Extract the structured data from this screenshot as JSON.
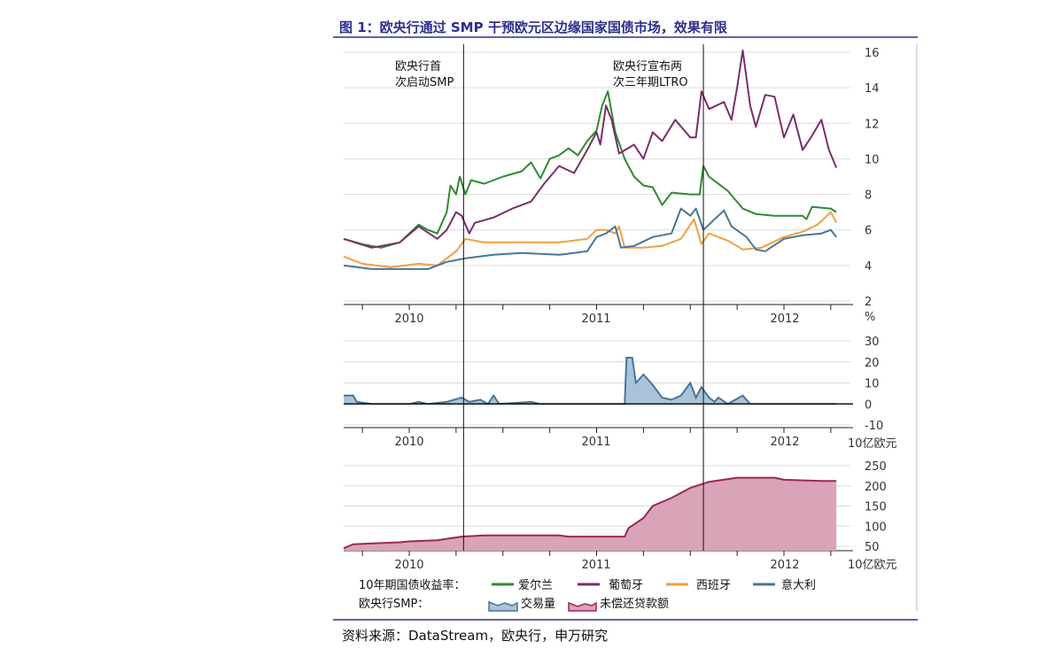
{
  "title": "图 1：欧央行通过 SMP 干预欧元区边缘国家国债市场，效果有限",
  "source": "资料来源：DataStream，欧央行，申万研究",
  "annotations": {
    "smp": [
      "欧央行首",
      "次启动SMP"
    ],
    "ltro": [
      "欧央行宣布两",
      "次三年期LTRO"
    ]
  },
  "legend": {
    "yield_label": "10年期国债收益率：",
    "smp_label": "欧央行SMP：",
    "items": [
      "爱尔兰",
      "葡萄牙",
      "西班牙",
      "意大利",
      "交易量",
      "未偿还贷款额"
    ]
  },
  "colors": {
    "ireland": "#2e8b2e",
    "portugal": "#7b2d6e",
    "spain": "#f0a040",
    "italy": "#4a7595",
    "volume_fill": "#a9c4da",
    "outstanding_fill": "#d9a3b8",
    "outstanding_line": "#9a2858",
    "title": "#2b2f8f"
  },
  "chart_data": [
    {
      "type": "line",
      "ylabel": "%",
      "ylim": [
        2,
        16
      ],
      "yticks": [
        "16",
        "14",
        "12",
        "10",
        "8",
        "6",
        "4",
        "2"
      ],
      "xticks": [
        "2010",
        "2011",
        "2012"
      ],
      "grid": true,
      "event_lines": [
        2010.29,
        2011.57
      ],
      "series": [
        {
          "name": "爱尔兰",
          "x": [
            2009.65,
            2009.75,
            2009.85,
            2009.95,
            2010.0,
            2010.05,
            2010.1,
            2010.15,
            2010.2,
            2010.22,
            2010.25,
            2010.27,
            2010.3,
            2010.33,
            2010.4,
            2010.5,
            2010.6,
            2010.65,
            2010.7,
            2010.75,
            2010.8,
            2010.85,
            2010.9,
            2010.95,
            2011.0,
            2011.03,
            2011.06,
            2011.1,
            2011.15,
            2011.2,
            2011.25,
            2011.3,
            2011.35,
            2011.4,
            2011.5,
            2011.55,
            2011.57,
            2011.6,
            2011.7,
            2011.78,
            2011.85,
            2011.95,
            2012.1,
            2012.12,
            2012.15,
            2012.25,
            2012.28
          ],
          "y": [
            5.5,
            5.2,
            5.0,
            5.3,
            5.8,
            6.3,
            6.0,
            5.8,
            7.0,
            8.5,
            8.0,
            9.0,
            8.0,
            8.8,
            8.6,
            9.0,
            9.3,
            9.8,
            8.9,
            10.0,
            10.2,
            10.6,
            10.2,
            11.0,
            11.6,
            13.0,
            13.8,
            11.5,
            10.0,
            9.0,
            8.5,
            8.4,
            7.4,
            8.1,
            8.0,
            8.0,
            9.6,
            9.0,
            8.2,
            7.2,
            6.9,
            6.8,
            6.8,
            6.6,
            7.3,
            7.2,
            7.0
          ]
        },
        {
          "name": "葡萄牙",
          "x": [
            2009.65,
            2009.8,
            2009.95,
            2010.05,
            2010.15,
            2010.2,
            2010.25,
            2010.28,
            2010.32,
            2010.35,
            2010.45,
            2010.55,
            2010.65,
            2010.72,
            2010.8,
            2010.88,
            2010.95,
            2011.0,
            2011.02,
            2011.05,
            2011.08,
            2011.12,
            2011.2,
            2011.25,
            2011.3,
            2011.35,
            2011.42,
            2011.5,
            2011.53,
            2011.56,
            2011.6,
            2011.68,
            2011.72,
            2011.75,
            2011.78,
            2011.82,
            2011.85,
            2011.9,
            2011.95,
            2012.0,
            2012.05,
            2012.1,
            2012.15,
            2012.2,
            2012.24,
            2012.28
          ],
          "y": [
            5.5,
            5.0,
            5.3,
            6.2,
            5.5,
            6.0,
            7.0,
            6.8,
            5.8,
            6.4,
            6.7,
            7.2,
            7.6,
            8.6,
            9.6,
            9.2,
            10.5,
            11.5,
            10.8,
            13.0,
            12.2,
            10.3,
            10.8,
            10.0,
            11.5,
            11.0,
            12.2,
            11.2,
            11.2,
            13.8,
            12.8,
            13.2,
            12.2,
            14.0,
            16.1,
            13.0,
            11.8,
            13.6,
            13.5,
            11.2,
            12.5,
            10.5,
            11.3,
            12.2,
            10.5,
            9.5
          ]
        },
        {
          "name": "西班牙",
          "x": [
            2009.65,
            2009.75,
            2009.9,
            2010.05,
            2010.15,
            2010.25,
            2010.3,
            2010.4,
            2010.6,
            2010.8,
            2010.95,
            2011.0,
            2011.05,
            2011.1,
            2011.12,
            2011.15,
            2011.25,
            2011.35,
            2011.45,
            2011.52,
            2011.56,
            2011.6,
            2011.7,
            2011.78,
            2011.88,
            2012.0,
            2012.1,
            2012.18,
            2012.25,
            2012.28
          ],
          "y": [
            4.5,
            4.1,
            3.9,
            4.1,
            4.0,
            4.8,
            5.5,
            5.3,
            5.3,
            5.3,
            5.5,
            6.0,
            6.0,
            5.8,
            6.2,
            5.0,
            5.0,
            5.1,
            5.5,
            6.6,
            5.2,
            5.8,
            5.4,
            4.9,
            5.0,
            5.6,
            5.9,
            6.3,
            7.0,
            6.4
          ]
        },
        {
          "name": "意大利",
          "x": [
            2009.65,
            2009.8,
            2009.95,
            2010.1,
            2010.2,
            2010.3,
            2010.45,
            2010.6,
            2010.8,
            2010.95,
            2011.0,
            2011.05,
            2011.1,
            2011.13,
            2011.2,
            2011.3,
            2011.4,
            2011.45,
            2011.5,
            2011.53,
            2011.57,
            2011.62,
            2011.68,
            2011.72,
            2011.8,
            2011.85,
            2011.9,
            2012.0,
            2012.1,
            2012.2,
            2012.25,
            2012.28
          ],
          "y": [
            4.0,
            3.8,
            3.8,
            3.8,
            4.2,
            4.4,
            4.6,
            4.7,
            4.6,
            4.8,
            5.6,
            5.8,
            6.2,
            5.0,
            5.1,
            5.6,
            5.8,
            7.2,
            6.8,
            7.2,
            6.0,
            6.5,
            7.1,
            6.2,
            5.6,
            4.9,
            4.8,
            5.5,
            5.7,
            5.8,
            6.0,
            5.6
          ]
        }
      ]
    },
    {
      "type": "area",
      "ylim": [
        -10,
        30
      ],
      "yticks": [
        "30",
        "20",
        "10",
        "0",
        "-10"
      ],
      "xticks": [
        "2010",
        "2011",
        "2012"
      ],
      "unit": "10亿欧元",
      "grid": true,
      "series": [
        {
          "name": "交易量",
          "x": [
            2009.65,
            2009.7,
            2009.72,
            2009.8,
            2010.0,
            2010.05,
            2010.1,
            2010.2,
            2010.28,
            2010.32,
            2010.38,
            2010.42,
            2010.45,
            2010.48,
            2010.65,
            2010.7,
            2011.0,
            2011.15,
            2011.16,
            2011.19,
            2011.21,
            2011.25,
            2011.3,
            2011.35,
            2011.4,
            2011.45,
            2011.5,
            2011.53,
            2011.56,
            2011.6,
            2011.63,
            2011.65,
            2011.7,
            2011.78,
            2011.82,
            2012.28
          ],
          "y": [
            4,
            4,
            1,
            0,
            0,
            1,
            0,
            1,
            3,
            1,
            2,
            0,
            4,
            0,
            1,
            0,
            0,
            0,
            22,
            22,
            10,
            14,
            9,
            3,
            2,
            4,
            10,
            3,
            8,
            3,
            1,
            3,
            0,
            4,
            0,
            0
          ]
        }
      ]
    },
    {
      "type": "area",
      "ylim": [
        40,
        250
      ],
      "yticks": [
        "250",
        "200",
        "150",
        "100",
        "50"
      ],
      "xticks": [
        "2010",
        "2011",
        "2012"
      ],
      "unit": "10亿欧元",
      "grid": true,
      "series": [
        {
          "name": "未偿还贷款额",
          "x": [
            2009.65,
            2009.7,
            2009.95,
            2010.0,
            2010.15,
            2010.28,
            2010.4,
            2010.8,
            2010.85,
            2011.15,
            2011.17,
            2011.25,
            2011.3,
            2011.4,
            2011.5,
            2011.6,
            2011.75,
            2011.95,
            2012.0,
            2012.2,
            2012.28
          ],
          "y": [
            45,
            55,
            60,
            62,
            65,
            74,
            77,
            77,
            74,
            74,
            95,
            120,
            150,
            170,
            195,
            210,
            220,
            220,
            215,
            212,
            212
          ]
        }
      ]
    }
  ]
}
